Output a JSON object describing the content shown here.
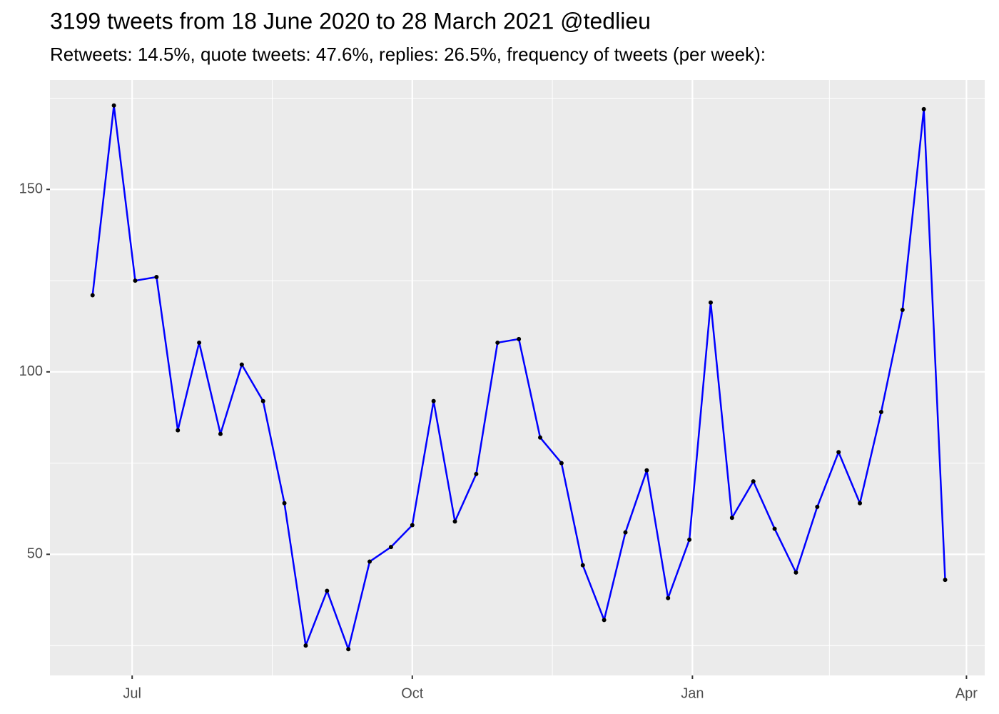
{
  "chart_data": {
    "type": "line",
    "title": "3199 tweets from 18 June 2020 to 28 March 2021 @tedlieu",
    "subtitle": "Retweets: 14.5%, quote tweets: 47.6%, replies: 26.5%, frequency of tweets (per week):",
    "x": [
      "2020-06-18",
      "2020-06-25",
      "2020-07-02",
      "2020-07-09",
      "2020-07-16",
      "2020-07-23",
      "2020-07-30",
      "2020-08-06",
      "2020-08-13",
      "2020-08-20",
      "2020-08-27",
      "2020-09-03",
      "2020-09-10",
      "2020-09-17",
      "2020-09-24",
      "2020-10-01",
      "2020-10-08",
      "2020-10-15",
      "2020-10-22",
      "2020-10-29",
      "2020-11-05",
      "2020-11-12",
      "2020-11-19",
      "2020-11-26",
      "2020-12-03",
      "2020-12-10",
      "2020-12-17",
      "2020-12-24",
      "2020-12-31",
      "2021-01-07",
      "2021-01-14",
      "2021-01-21",
      "2021-01-28",
      "2021-02-04",
      "2021-02-11",
      "2021-02-18",
      "2021-02-25",
      "2021-03-04",
      "2021-03-11",
      "2021-03-18",
      "2021-03-25"
    ],
    "values": [
      121,
      173,
      125,
      126,
      84,
      108,
      83,
      102,
      92,
      64,
      25,
      40,
      24,
      48,
      52,
      58,
      92,
      59,
      72,
      108,
      109,
      82,
      75,
      47,
      32,
      56,
      73,
      38,
      54,
      119,
      60,
      70,
      57,
      45,
      63,
      78,
      64,
      89,
      117,
      172,
      43
    ],
    "color": "#0000ff",
    "point_color": "#000000",
    "xlim": [
      "2020-06-04",
      "2021-04-07"
    ],
    "xticks": [
      {
        "value": "2020-07-01",
        "label": "Jul"
      },
      {
        "value": "2020-10-01",
        "label": "Oct"
      },
      {
        "value": "2021-01-01",
        "label": "Jan"
      },
      {
        "value": "2021-04-01",
        "label": "Apr"
      }
    ],
    "ylim": [
      16.8,
      180
    ],
    "yticks": [
      50,
      100,
      150
    ],
    "grid": true
  }
}
